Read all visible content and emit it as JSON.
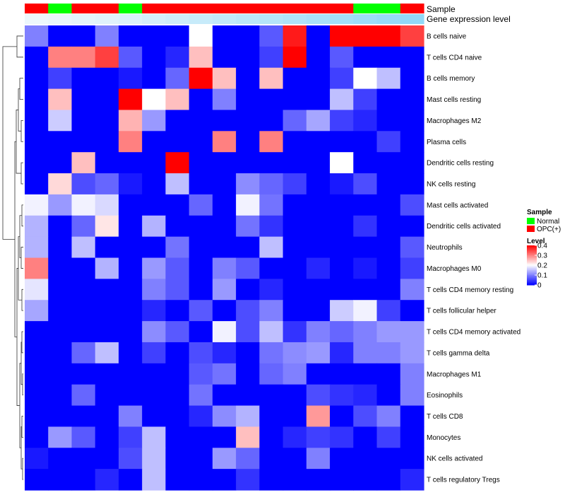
{
  "chart_data": {
    "type": "heatmap",
    "title": "",
    "annotation_tracks": {
      "sample_track_label": "Sample",
      "expression_track_label": "Gene expression level"
    },
    "legend": {
      "sample_title": "Sample",
      "sample_entries": [
        {
          "label": "Normal",
          "color": "#00ff00"
        },
        {
          "label": "OPC(+)",
          "color": "#ff0000"
        }
      ],
      "level_title": "Level",
      "level_ticks": [
        {
          "value": 0.4,
          "label": "0.4"
        },
        {
          "value": 0.3,
          "label": "0.3"
        },
        {
          "value": 0.2,
          "label": "0.2"
        },
        {
          "value": 0.1,
          "label": "0.1"
        },
        {
          "value": 0,
          "label": "0"
        }
      ],
      "level_range": [
        0,
        0.4
      ],
      "level_colors": {
        "low": "#0000ff",
        "mid": "#ffffff",
        "high": "#ff0000"
      },
      "placement": "right"
    },
    "column_samples": [
      "OPC(+)",
      "Normal",
      "OPC(+)",
      "OPC(+)",
      "Normal",
      "OPC(+)",
      "OPC(+)",
      "OPC(+)",
      "OPC(+)",
      "OPC(+)",
      "OPC(+)",
      "OPC(+)",
      "OPC(+)",
      "OPC(+)",
      "Normal",
      "Normal",
      "OPC(+)"
    ],
    "column_expression_level": [
      0.03,
      0.06,
      0.09,
      0.12,
      0.15,
      0.2,
      0.24,
      0.28,
      0.32,
      0.36,
      0.4,
      0.44,
      0.48,
      0.52,
      0.56,
      0.6,
      0.64
    ],
    "expression_level_colors": {
      "low": "#f2f8fc",
      "high": "#5ac8f5"
    },
    "rows": [
      "B cells naive",
      "T cells CD4 naive",
      "B cells memory",
      "Mast cells resting",
      "Macrophages M2",
      "Plasma cells",
      "Dendritic cells resting",
      "NK cells resting",
      "Mast cells activated",
      "Dendritic cells activated",
      "Neutrophils",
      "Macrophages M0",
      "T cells CD4 memory resting",
      "T cells follicular helper",
      "T cells CD4 memory activated",
      "T cells gamma delta",
      "Macrophages M1",
      "Eosinophils",
      "T cells CD8",
      "Monocytes",
      "NK cells activated",
      "T cells regulatory  Tregs"
    ],
    "values": [
      [
        0.1,
        0,
        0,
        0.1,
        0,
        0,
        0,
        0.2,
        0,
        0,
        0.07,
        0.38,
        0,
        0.4,
        0.4,
        0.4,
        0.35
      ],
      [
        0,
        0.3,
        0.3,
        0.35,
        0.07,
        0,
        0.03,
        0.25,
        0,
        0,
        0.05,
        0.4,
        0,
        0.07,
        0,
        0,
        0
      ],
      [
        0,
        0.05,
        0,
        0,
        0.02,
        0,
        0.08,
        0.4,
        0.25,
        0,
        0.25,
        0,
        0,
        0.05,
        0.2,
        0.15,
        0
      ],
      [
        0,
        0.25,
        0,
        0,
        0.4,
        0.2,
        0.25,
        0,
        0.1,
        0,
        0,
        0,
        0,
        0.15,
        0.05,
        0,
        0
      ],
      [
        0,
        0.16,
        0,
        0,
        0.26,
        0.12,
        0,
        0,
        0,
        0,
        0,
        0.08,
        0.13,
        0.05,
        0.03,
        0,
        0
      ],
      [
        0,
        0,
        0,
        0,
        0.3,
        0,
        0,
        0,
        0.3,
        0,
        0.3,
        0,
        0,
        0,
        0,
        0.05,
        0
      ],
      [
        0,
        0,
        0.25,
        0,
        0,
        0,
        0.4,
        0,
        0,
        0,
        0,
        0,
        0,
        0.2,
        0,
        0,
        0
      ],
      [
        0,
        0.23,
        0.06,
        0.08,
        0.02,
        0,
        0.15,
        0,
        0,
        0.11,
        0.08,
        0.05,
        0,
        0.02,
        0.06,
        0,
        0
      ],
      [
        0.19,
        0.12,
        0.19,
        0.17,
        0,
        0,
        0,
        0.08,
        0,
        0.19,
        0.09,
        0,
        0,
        0,
        0,
        0,
        0.06
      ],
      [
        0.14,
        0,
        0.08,
        0.22,
        0,
        0.14,
        0,
        0,
        0,
        0.09,
        0.04,
        0,
        0,
        0,
        0.04,
        0,
        0
      ],
      [
        0.14,
        0,
        0.15,
        0,
        0,
        0,
        0.09,
        0,
        0,
        0,
        0.15,
        0,
        0,
        0,
        0,
        0,
        0.07
      ],
      [
        0.3,
        0,
        0,
        0.14,
        0,
        0.12,
        0.07,
        0,
        0.1,
        0.07,
        0,
        0,
        0.03,
        0,
        0.02,
        0,
        0.05
      ],
      [
        0.18,
        0,
        0,
        0,
        0,
        0.1,
        0.07,
        0,
        0.12,
        0,
        0.03,
        0,
        0,
        0,
        0,
        0,
        0.1
      ],
      [
        0.13,
        0,
        0,
        0,
        0,
        0.03,
        0,
        0.07,
        0,
        0.06,
        0.1,
        0,
        0,
        0.16,
        0.19,
        0.05,
        0
      ],
      [
        0,
        0,
        0,
        0,
        0,
        0.11,
        0.07,
        0,
        0.19,
        0.06,
        0.15,
        0.04,
        0.1,
        0.08,
        0.1,
        0.12,
        0.12
      ],
      [
        0,
        0,
        0.08,
        0.15,
        0,
        0.05,
        0,
        0.06,
        0.03,
        0,
        0.09,
        0.11,
        0.12,
        0.03,
        0.1,
        0.1,
        0.12
      ],
      [
        0,
        0,
        0,
        0,
        0,
        0,
        0,
        0.07,
        0.09,
        0,
        0.08,
        0.1,
        0,
        0,
        0,
        0,
        0.1
      ],
      [
        0,
        0,
        0.08,
        0,
        0,
        0,
        0,
        0.09,
        0,
        0,
        0,
        0,
        0.06,
        0.04,
        0.03,
        0,
        0.1
      ],
      [
        0,
        0,
        0,
        0,
        0.1,
        0,
        0,
        0.03,
        0.11,
        0.14,
        0,
        0,
        0.28,
        0,
        0.06,
        0.1,
        0
      ],
      [
        0,
        0.12,
        0.07,
        0,
        0.05,
        0.15,
        0,
        0,
        0,
        0.25,
        0,
        0.03,
        0.05,
        0.04,
        0,
        0.05,
        0
      ],
      [
        0.02,
        0,
        0,
        0,
        0.06,
        0.15,
        0,
        0,
        0.12,
        0.08,
        0,
        0,
        0.1,
        0,
        0,
        0,
        0
      ],
      [
        0,
        0,
        0,
        0.03,
        0,
        0.15,
        0,
        0,
        0,
        0.04,
        0,
        0,
        0,
        0,
        0,
        0,
        0.03
      ]
    ]
  }
}
